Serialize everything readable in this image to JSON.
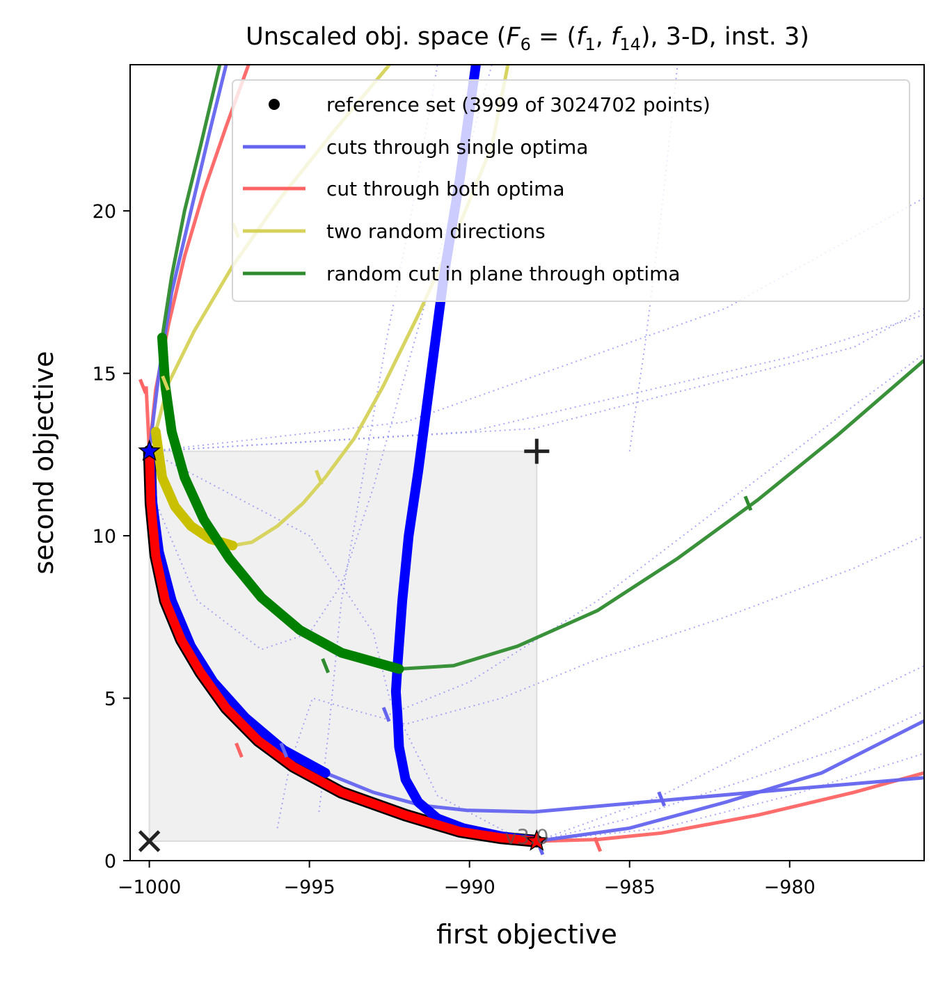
{
  "chart_data": {
    "type": "line",
    "title": "Unscaled obj. space (F6 = (f1, f14), 3-D, inst. 3)",
    "title_parts": {
      "prefix": "Unscaled obj. space (",
      "F": "F",
      "F_sub": "6",
      "eq": " = (",
      "f1": "f",
      "f1_sub": "1",
      "comma": ", ",
      "f2": "f",
      "f2_sub": "14",
      "suffix": "), 3-D, inst. 3)"
    },
    "xlabel": "first objective",
    "ylabel": "second objective",
    "xlim": [
      -1000.6,
      -975.8
    ],
    "ylim": [
      0,
      24.5
    ],
    "xticks": [
      -1000,
      -995,
      -990,
      -985,
      -980
    ],
    "xtick_labels": [
      "−1000",
      "−995",
      "−990",
      "−985",
      "−980"
    ],
    "yticks": [
      0,
      5,
      10,
      15,
      20
    ],
    "ytick_labels": [
      "0",
      "5",
      "10",
      "15",
      "20"
    ],
    "grid": false,
    "legend_position": "top-right",
    "legend": [
      {
        "label": "reference set (3999 of 3024702 points)",
        "marker": "dot",
        "color": "#000000"
      },
      {
        "label": "cuts through single optima",
        "marker": "line",
        "color": "#6464f0"
      },
      {
        "label": "cut through both optima",
        "marker": "line",
        "color": "#ff6464"
      },
      {
        "label": "two random directions",
        "marker": "line",
        "color": "#d6d25a"
      },
      {
        "label": "random cut in plane through optima",
        "marker": "line",
        "color": "#2e8b2e"
      }
    ],
    "colors": {
      "reference": "#000000",
      "single_optima": "#0000ff",
      "both_optima": "#ff0000",
      "random_dirs": "#c8c000",
      "plane_cut": "#008000",
      "dotted": "#8c8cf0",
      "ideal_box": "#f0f0f0"
    },
    "ideal_point": [
      -1000,
      0.6
    ],
    "nadir_point": [
      -987.9,
      12.6
    ],
    "optima": [
      {
        "name": "opt1",
        "point": [
          -1000,
          12.6
        ],
        "color": "#0000ff"
      },
      {
        "name": "opt2",
        "point": [
          -987.9,
          0.6
        ],
        "color": "#ff0000"
      }
    ],
    "series": [
      {
        "name": "reference set",
        "kind": "reference",
        "points": [
          [
            -1000,
            12.6
          ],
          [
            -999.95,
            11
          ],
          [
            -999.8,
            9.4
          ],
          [
            -999.5,
            8.0
          ],
          [
            -999,
            6.8
          ],
          [
            -998.4,
            5.8
          ],
          [
            -997.6,
            4.7
          ],
          [
            -996.6,
            3.7
          ],
          [
            -995.5,
            2.9
          ],
          [
            -994,
            2.1
          ],
          [
            -992,
            1.4
          ],
          [
            -990.3,
            0.9
          ],
          [
            -989,
            0.7
          ],
          [
            -987.9,
            0.6
          ]
        ]
      },
      {
        "name": "cut through both optima",
        "kind": "both_optima",
        "points": [
          [
            -1000.1,
            14.6
          ],
          [
            -1000,
            12.6
          ],
          [
            -999.95,
            11
          ],
          [
            -999.8,
            9.4
          ],
          [
            -999.5,
            8.0
          ],
          [
            -999,
            6.8
          ],
          [
            -998.4,
            5.8
          ],
          [
            -997.6,
            4.7
          ],
          [
            -996.6,
            3.7
          ],
          [
            -995.5,
            2.9
          ],
          [
            -994,
            2.1
          ],
          [
            -992,
            1.4
          ],
          [
            -990.3,
            0.9
          ],
          [
            -989,
            0.7
          ],
          [
            -987.9,
            0.6
          ],
          [
            -986,
            0.65
          ],
          [
            -984,
            0.85
          ],
          [
            -981,
            1.4
          ],
          [
            -978,
            2.1
          ],
          [
            -975.8,
            2.7
          ]
        ],
        "upper_branch": [
          [
            -1000,
            12.6
          ],
          [
            -999.8,
            14.5
          ],
          [
            -999.4,
            16.5
          ],
          [
            -998.9,
            18.6
          ],
          [
            -998.3,
            20.6
          ],
          [
            -997.6,
            22.6
          ],
          [
            -996.9,
            24.5
          ]
        ],
        "ticks": [
          [
            -1000.2,
            14.6
          ],
          [
            -997.2,
            3.4
          ],
          [
            -986,
            0.5
          ]
        ]
      },
      {
        "name": "cut through single optimum 1",
        "kind": "single_optima",
        "points": [
          [
            -1000,
            12.6
          ],
          [
            -999.9,
            11
          ],
          [
            -999.7,
            9.5
          ],
          [
            -999.3,
            8.0
          ],
          [
            -998.7,
            6.6
          ],
          [
            -998,
            5.5
          ],
          [
            -997,
            4.4
          ],
          [
            -995.8,
            3.4
          ],
          [
            -994.5,
            2.7
          ],
          [
            -993,
            2.1
          ],
          [
            -991.5,
            1.7
          ],
          [
            -990.1,
            1.55
          ],
          [
            -988,
            1.5
          ],
          [
            -984,
            1.85
          ],
          [
            -980,
            2.2
          ],
          [
            -975.8,
            2.55
          ]
        ],
        "upper_branch": [
          [
            -1000,
            12.6
          ],
          [
            -999.7,
            15
          ],
          [
            -999.3,
            17.5
          ],
          [
            -998.7,
            20
          ],
          [
            -998.1,
            22.5
          ],
          [
            -997.6,
            24.5
          ]
        ],
        "ticks": [
          [
            -995.8,
            3.4
          ],
          [
            -984,
            1.9
          ]
        ]
      },
      {
        "name": "cut through single optimum 2",
        "kind": "single_optima",
        "points": [
          [
            -987.9,
            0.6
          ],
          [
            -989,
            0.75
          ],
          [
            -990.2,
            1.0
          ],
          [
            -991,
            1.3
          ],
          [
            -991.6,
            1.8
          ],
          [
            -992,
            2.5
          ],
          [
            -992.2,
            3.5
          ],
          [
            -992.25,
            4.5
          ],
          [
            -992.3,
            5.2
          ],
          [
            -992.25,
            6
          ],
          [
            -992.1,
            8
          ],
          [
            -991.9,
            10
          ],
          [
            -991.6,
            12
          ],
          [
            -991.2,
            15
          ],
          [
            -990.8,
            18
          ],
          [
            -990.3,
            21
          ],
          [
            -989.8,
            24.5
          ]
        ],
        "lower_branch": [
          [
            -987.9,
            0.6
          ],
          [
            -985,
            1.0
          ],
          [
            -982,
            1.8
          ],
          [
            -979,
            2.7
          ],
          [
            -975.8,
            4.3
          ]
        ],
        "ticks": [
          [
            -992.6,
            4.5
          ],
          [
            -987.8,
            0.4
          ]
        ]
      },
      {
        "name": "two random directions",
        "kind": "random_dirs",
        "points": [
          [
            -999.8,
            13.2
          ],
          [
            -999.6,
            11.8
          ],
          [
            -999.2,
            10.9
          ],
          [
            -998.7,
            10.3
          ],
          [
            -998.1,
            9.9
          ],
          [
            -997.4,
            9.7
          ],
          [
            -996.8,
            9.8
          ],
          [
            -996,
            10.3
          ],
          [
            -995.2,
            11.0
          ],
          [
            -994.5,
            11.8
          ],
          [
            -993.6,
            13
          ],
          [
            -992.7,
            14.6
          ],
          [
            -991.6,
            16.8
          ],
          [
            -990.3,
            19.6
          ],
          [
            -989.3,
            22
          ],
          [
            -988.8,
            24.5
          ]
        ],
        "upper_branch": [
          [
            -999.8,
            13.2
          ],
          [
            -999.4,
            14.7
          ],
          [
            -998.6,
            16.3
          ],
          [
            -997.4,
            18.3
          ],
          [
            -995.9,
            20.4
          ],
          [
            -994.2,
            22.5
          ],
          [
            -992.5,
            24.5
          ]
        ],
        "ticks": [
          [
            -994.7,
            11.8
          ],
          [
            -999.5,
            14.7
          ],
          [
            -997.3,
            19.4
          ]
        ]
      },
      {
        "name": "random cut in plane through optima",
        "kind": "plane_cut",
        "points": [
          [
            -999.6,
            16.1
          ],
          [
            -999.5,
            14.6
          ],
          [
            -999.3,
            13.2
          ],
          [
            -998.9,
            11.8
          ],
          [
            -998.3,
            10.5
          ],
          [
            -997.5,
            9.3
          ],
          [
            -996.5,
            8.1
          ],
          [
            -995.3,
            7.1
          ],
          [
            -994,
            6.4
          ],
          [
            -992.2,
            5.9
          ],
          [
            -990.5,
            6.0
          ],
          [
            -988.5,
            6.6
          ],
          [
            -986,
            7.7
          ],
          [
            -983.5,
            9.3
          ],
          [
            -981,
            11.1
          ],
          [
            -978.5,
            13.1
          ],
          [
            -975.8,
            15.4
          ]
        ],
        "upper_branch": [
          [
            -999.6,
            16.1
          ],
          [
            -999.3,
            18
          ],
          [
            -998.9,
            20
          ],
          [
            -998.4,
            22
          ],
          [
            -997.8,
            24.5
          ]
        ],
        "ticks": [
          [
            -994.5,
            6.0
          ],
          [
            -981.3,
            11.0
          ]
        ]
      }
    ],
    "dotted_lines": [
      [
        [
          -1000,
          12.6
        ],
        [
          -990,
          13.2
        ],
        [
          -980,
          15.5
        ],
        [
          -975.8,
          16.8
        ]
      ],
      [
        [
          -1000,
          12.6
        ],
        [
          -988,
          13.3
        ],
        [
          -978,
          15.8
        ],
        [
          -975.8,
          17
        ]
      ],
      [
        [
          -1000,
          12.6
        ],
        [
          -992,
          13.5
        ],
        [
          -982,
          17
        ],
        [
          -975.8,
          20.4
        ]
      ],
      [
        [
          -1000,
          12.6
        ],
        [
          -995,
          10
        ],
        [
          -993,
          7
        ],
        [
          -992.5,
          5
        ],
        [
          -991,
          2
        ],
        [
          -988.5,
          0.7
        ],
        [
          -987.9,
          0.6
        ]
      ],
      [
        [
          -994.7,
          1.5
        ],
        [
          -994.4,
          4
        ],
        [
          -994,
          8
        ],
        [
          -993.3,
          12
        ],
        [
          -992.6,
          16
        ],
        [
          -991.8,
          20
        ],
        [
          -991,
          24.5
        ]
      ],
      [
        [
          -1000,
          11.5
        ],
        [
          -998.5,
          8
        ],
        [
          -996.5,
          6.5
        ],
        [
          -995,
          7
        ],
        [
          -994,
          8.5
        ],
        [
          -993,
          11.5
        ],
        [
          -992,
          15
        ],
        [
          -991,
          18.5
        ],
        [
          -990,
          22
        ],
        [
          -989.3,
          24.5
        ]
      ],
      [
        [
          -996,
          1.0
        ],
        [
          -995.6,
          3
        ],
        [
          -994.9,
          5
        ],
        [
          -993.5,
          4.6
        ],
        [
          -992,
          4.2
        ],
        [
          -989,
          5
        ],
        [
          -986,
          6.2
        ],
        [
          -982,
          7.5
        ],
        [
          -978,
          9
        ],
        [
          -975.8,
          10
        ]
      ],
      [
        [
          -992.5,
          4.5
        ],
        [
          -990,
          5.5
        ],
        [
          -986,
          8
        ],
        [
          -982,
          11
        ],
        [
          -978,
          14
        ],
        [
          -975.8,
          15.6
        ]
      ],
      [
        [
          -987.9,
          0.6
        ],
        [
          -985,
          1.3
        ],
        [
          -981,
          2.6
        ],
        [
          -978,
          3.6
        ],
        [
          -975.8,
          4.6
        ]
      ],
      [
        [
          -987.9,
          0.6
        ],
        [
          -984,
          1.0
        ],
        [
          -980,
          2.0
        ],
        [
          -975.8,
          3.3
        ]
      ],
      [
        [
          -987.9,
          0.6
        ],
        [
          -984,
          2.0
        ],
        [
          -980,
          4.0
        ],
        [
          -975.8,
          6.0
        ]
      ],
      [
        [
          -985,
          12.6
        ],
        [
          -984.5,
          16
        ],
        [
          -984,
          20
        ],
        [
          -983.5,
          24.5
        ]
      ]
    ],
    "annotations": {
      "version": "v3.0"
    }
  }
}
